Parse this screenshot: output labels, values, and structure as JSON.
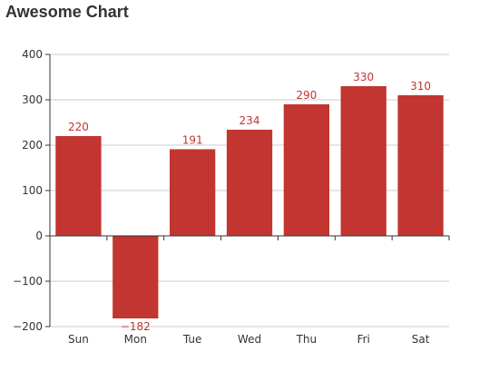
{
  "chart_data": {
    "type": "bar",
    "title": "Awesome Chart",
    "categories": [
      "Sun",
      "Mon",
      "Tue",
      "Wed",
      "Thu",
      "Fri",
      "Sat"
    ],
    "values": [
      220,
      -182,
      191,
      234,
      290,
      330,
      310
    ],
    "data_labels": [
      "220",
      "−182",
      "191",
      "234",
      "290",
      "330",
      "310"
    ],
    "ylim": [
      -200,
      400
    ],
    "yticks": [
      -200,
      -100,
      0,
      100,
      200,
      300,
      400
    ],
    "ytick_labels": [
      "−200",
      "−100",
      "0",
      "100",
      "200",
      "300",
      "400"
    ],
    "grid": true,
    "legend": "none",
    "xlabel": "",
    "ylabel": "",
    "colors": {
      "bar": "#c23531",
      "label": "#c23531",
      "grid": "#cccccc",
      "axis": "#333333",
      "text": "#333333"
    }
  }
}
